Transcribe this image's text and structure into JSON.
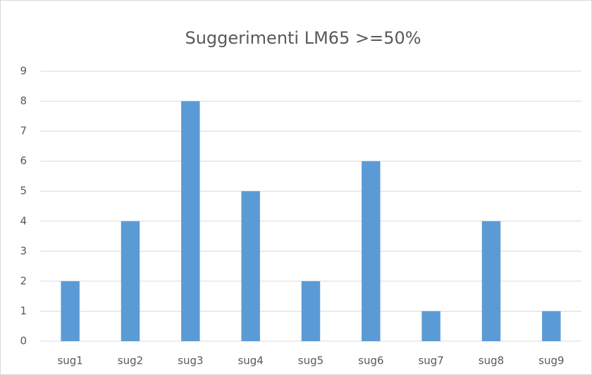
{
  "chart_data": {
    "type": "bar",
    "title": "Suggerimenti LM65 >=50%",
    "categories": [
      "sug1",
      "sug2",
      "sug3",
      "sug4",
      "sug5",
      "sug6",
      "sug7",
      "sug8",
      "sug9"
    ],
    "values": [
      2,
      4,
      8,
      5,
      2,
      6,
      1,
      4,
      1
    ],
    "color": "#5b9bd5",
    "ylim": [
      0,
      9
    ],
    "yticks": [
      0,
      1,
      2,
      3,
      4,
      5,
      6,
      7,
      8,
      9
    ],
    "grid": true
  }
}
